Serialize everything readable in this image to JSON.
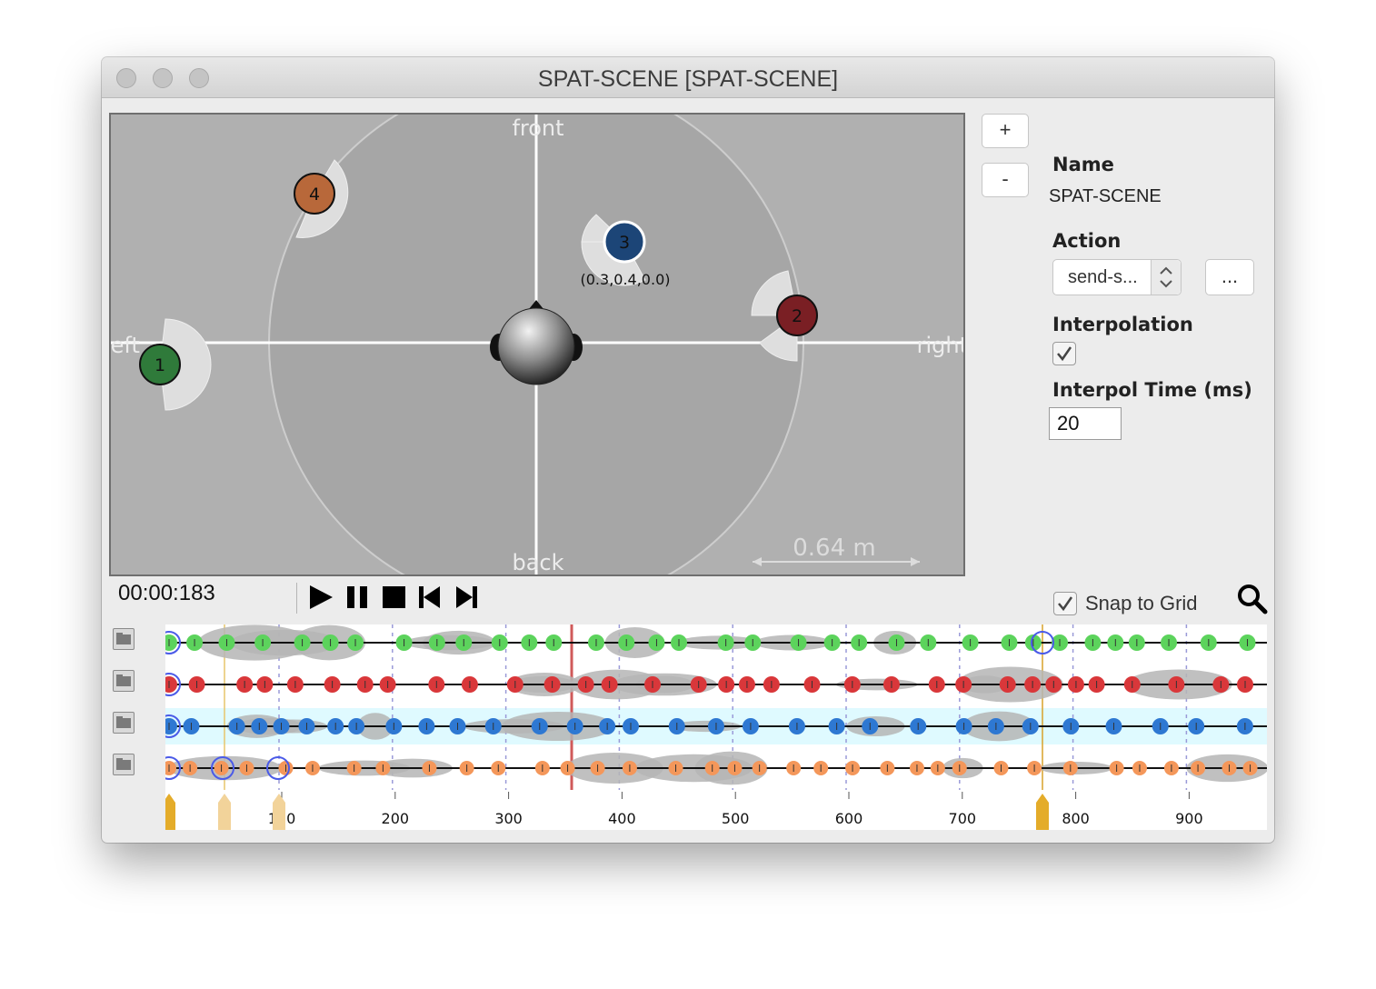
{
  "window": {
    "title": "SPAT-SCENE [SPAT-SCENE]"
  },
  "scene": {
    "labels": {
      "front": "front",
      "back": "back",
      "left": "left",
      "right": "right"
    },
    "scale_label": "0.64 m",
    "sources": [
      {
        "id": "1",
        "color": "#2f7a3a"
      },
      {
        "id": "2",
        "color": "#7a1f24"
      },
      {
        "id": "3",
        "color": "#1c4577",
        "coords": "(0.3,0.4,0.0)"
      },
      {
        "id": "4",
        "color": "#b8683a"
      }
    ]
  },
  "sidebar": {
    "plus_label": "+",
    "minus_label": "-",
    "name_label": "Name",
    "name_value": "SPAT-SCENE",
    "action_label": "Action",
    "action_value": "send-s...",
    "more_label": "...",
    "interpolation_label": "Interpolation",
    "interpolation_checked": true,
    "interpol_time_label": "Interpol Time (ms)",
    "interpol_time_value": "20"
  },
  "transport": {
    "time": "00:00:183",
    "snap_label": "Snap to Grid",
    "snap_checked": true
  },
  "timeline": {
    "ticks": [
      "100",
      "200",
      "300",
      "400",
      "500",
      "600",
      "700",
      "800",
      "900"
    ],
    "track_colors": [
      "#5cd35c",
      "#d9373a",
      "#2e78d2",
      "#f4975a"
    ]
  }
}
